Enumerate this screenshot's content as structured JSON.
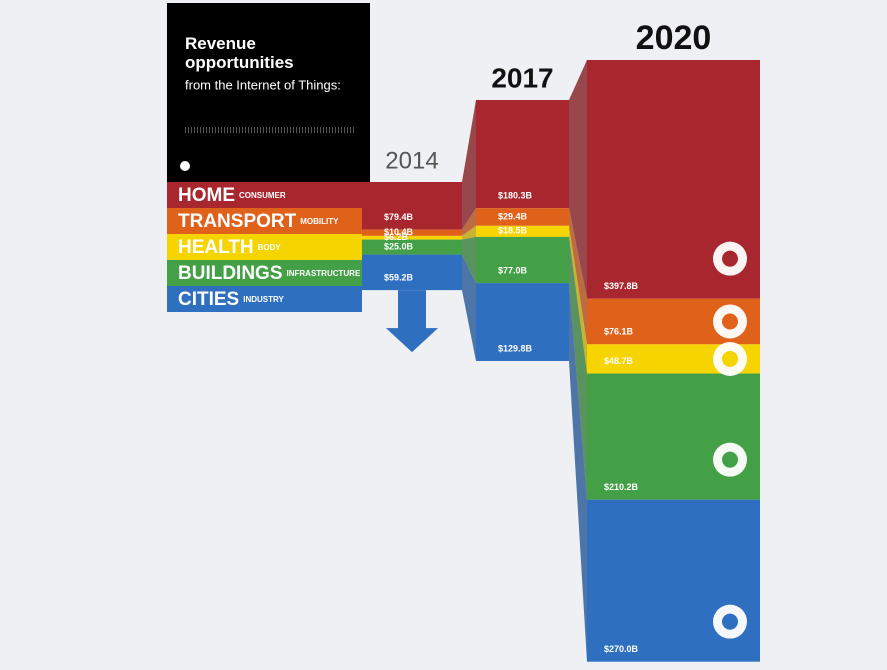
{
  "chart_data": {
    "type": "bar",
    "stacked": true,
    "title": "Revenue opportunities",
    "subtitle": "from the Internet of Things:",
    "categories": [
      "2014",
      "2017",
      "2020"
    ],
    "series": [
      {
        "name": "HOME",
        "subtitle": "CONSUMER",
        "color": "#a8262e",
        "values": [
          79.4,
          180.3,
          397.8
        ],
        "value_labels": [
          "$79.4B",
          "$180.3B",
          "$397.8B"
        ]
      },
      {
        "name": "TRANSPORT",
        "subtitle": "MOBILITY",
        "color": "#e0611a",
        "values": [
          10.4,
          29.4,
          76.1
        ],
        "value_labels": [
          "$10.4B",
          "$29.4B",
          "$76.1B"
        ]
      },
      {
        "name": "HEALTH",
        "subtitle": "BODY",
        "color": "#f5d400",
        "values": [
          6.2,
          18.5,
          48.7
        ],
        "value_labels": [
          "$6.2B",
          "$18.5B",
          "$48.7B"
        ]
      },
      {
        "name": "BUILDINGS",
        "subtitle": "INFRASTRUCTURE",
        "color": "#43a047",
        "values": [
          25.0,
          77.0,
          210.2
        ],
        "value_labels": [
          "$25.0B",
          "$77.0B",
          "$210.2B"
        ]
      },
      {
        "name": "CITIES",
        "subtitle": "INDUSTRY",
        "color": "#2f6fc0",
        "values": [
          59.2,
          129.8,
          270.0
        ],
        "value_labels": [
          "$59.2B",
          "$129.8B",
          "$270.0B"
        ]
      }
    ]
  }
}
